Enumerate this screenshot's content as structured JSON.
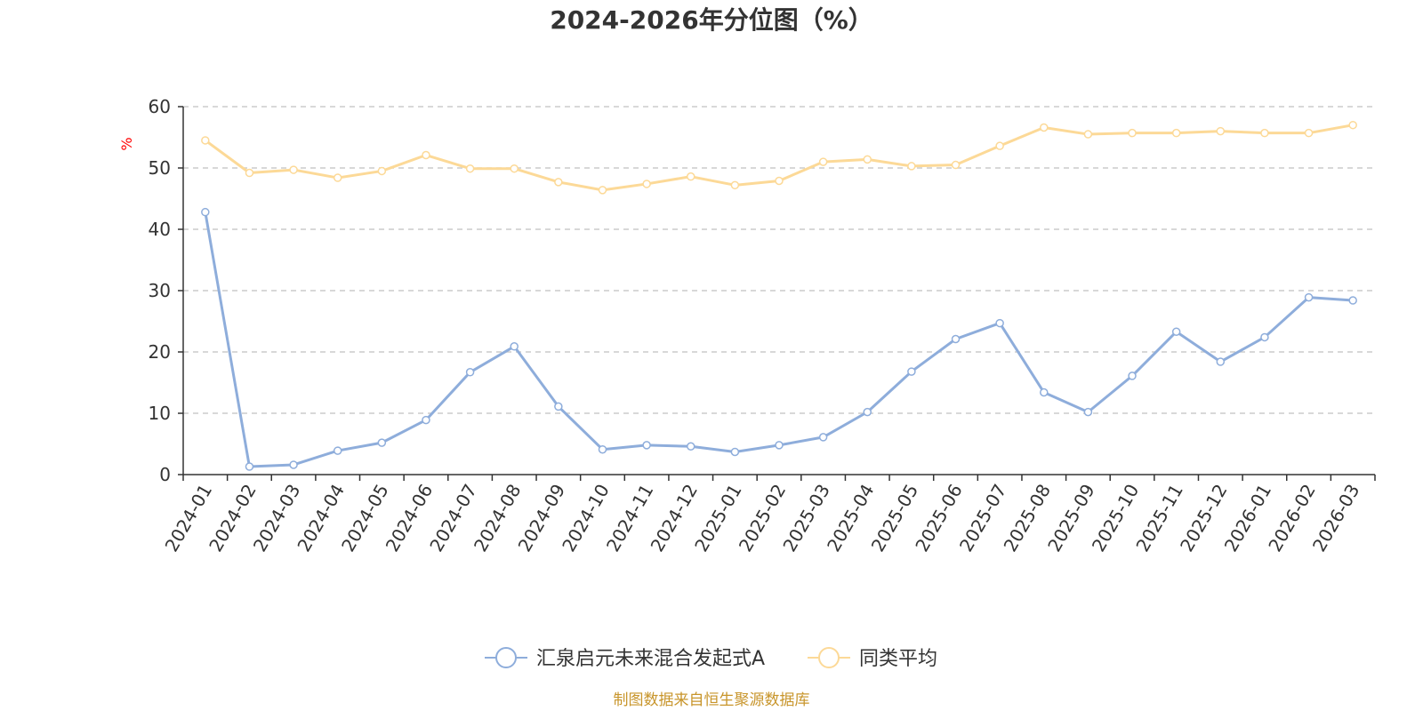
{
  "chart_data": {
    "type": "line",
    "title": "2024-2026年分位图（%）",
    "ylabel": "%",
    "xlabel": "",
    "ylim": [
      0,
      60
    ],
    "yticks": [
      0,
      10,
      20,
      30,
      40,
      50,
      60
    ],
    "grid": "horizontal-dashed",
    "legend_position": "bottom-center",
    "categories": [
      "2024-01",
      "2024-02",
      "2024-03",
      "2024-04",
      "2024-05",
      "2024-06",
      "2024-07",
      "2024-08",
      "2024-09",
      "2024-10",
      "2024-11",
      "2024-12",
      "2025-01",
      "2025-02",
      "2025-03",
      "2025-04",
      "2025-05",
      "2025-06",
      "2025-07",
      "2025-08",
      "2025-09",
      "2025-10",
      "2025-11",
      "2025-12",
      "2026-01",
      "2026-02",
      "2026-03"
    ],
    "series": [
      {
        "name": "汇泉启元未来混合发起式A",
        "color": "#8eaddb",
        "values": [
          42.8,
          1.3,
          1.6,
          3.9,
          5.2,
          8.9,
          16.7,
          20.9,
          11.1,
          4.1,
          4.8,
          4.6,
          3.7,
          4.8,
          6.1,
          10.2,
          16.8,
          22.1,
          24.7,
          13.4,
          10.2,
          16.1,
          23.3,
          18.4,
          22.4,
          28.9,
          28.4
        ]
      },
      {
        "name": "同类平均",
        "color": "#fcd997",
        "values": [
          54.5,
          49.2,
          49.7,
          48.4,
          49.5,
          52.1,
          49.9,
          49.9,
          47.7,
          46.4,
          47.4,
          48.6,
          47.2,
          47.9,
          51.0,
          51.4,
          50.3,
          50.5,
          53.6,
          56.6,
          55.5,
          55.7,
          55.7,
          56.0,
          55.7,
          55.7,
          57.0
        ]
      }
    ]
  },
  "source_text": "制图数据来自恒生聚源数据库"
}
